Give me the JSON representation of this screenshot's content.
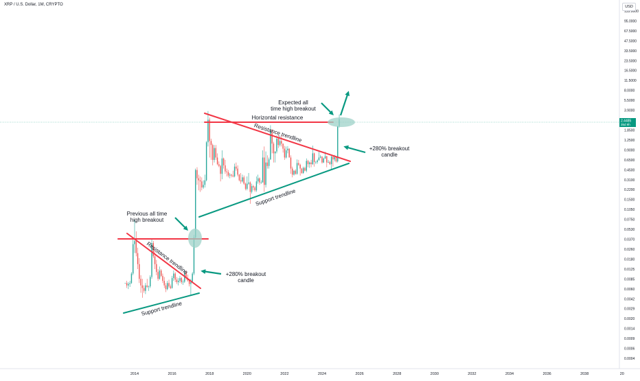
{
  "header": {
    "symbol_title": "XRP / U.S. Dollar, 1M, CRYPTO",
    "currency": "USD"
  },
  "colors": {
    "up": "#26a69a",
    "down": "#ef5350",
    "resistance": "#f23645",
    "support": "#089981",
    "annotation_arrow": "#089981",
    "price_line": "#089981",
    "highlight_circle": "#9ed2c8"
  },
  "price_label": {
    "value": "2.4485",
    "countdown": "35d 9h"
  },
  "chart_data": {
    "type": "candlestick",
    "y_scale": "log",
    "y_ticks": [
      "135.0000",
      "95.0000",
      "67.5000",
      "47.5000",
      "33.5000",
      "23.5000",
      "16.5000",
      "11.5000",
      "8.0000",
      "5.5000",
      "3.9000",
      "2.7000",
      "1.8500",
      "1.2500",
      "0.9000",
      "0.6500",
      "0.4500",
      "0.3100",
      "0.2200",
      "0.1500",
      "0.1050",
      "0.0750",
      "0.0530",
      "0.0370",
      "0.0260",
      "0.0180",
      "0.0125",
      "0.0085",
      "0.0060",
      "0.0042",
      "0.0029",
      "0.0020",
      "0.0014",
      "0.0009",
      "0.0006",
      "0.0004"
    ],
    "x_ticks": [
      "2014",
      "2016",
      "2018",
      "2020",
      "2022",
      "2024",
      "2026",
      "2028",
      "2030",
      "2032",
      "2034",
      "2036",
      "2038",
      "20"
    ],
    "x_range": [
      2013.0,
      2040.0
    ],
    "ylim": [
      0.00036,
      140
    ],
    "candles": [
      [
        2013.5,
        0.006,
        0.006,
        0.006,
        0.006
      ],
      [
        2013.583,
        0.006,
        0.0065,
        0.005,
        0.0055
      ],
      [
        2013.667,
        0.0055,
        0.0062,
        0.0048,
        0.0058
      ],
      [
        2013.75,
        0.0058,
        0.0065,
        0.0052,
        0.006
      ],
      [
        2013.833,
        0.006,
        0.009,
        0.0058,
        0.0085
      ],
      [
        2013.917,
        0.0085,
        0.03,
        0.008,
        0.025
      ],
      [
        2014.0,
        0.025,
        0.06,
        0.018,
        0.028
      ],
      [
        2014.083,
        0.028,
        0.04,
        0.016,
        0.018
      ],
      [
        2014.167,
        0.018,
        0.022,
        0.01,
        0.012
      ],
      [
        2014.25,
        0.012,
        0.015,
        0.006,
        0.007
      ],
      [
        2014.333,
        0.007,
        0.008,
        0.0042,
        0.0055
      ],
      [
        2014.417,
        0.0055,
        0.007,
        0.0035,
        0.005
      ],
      [
        2014.5,
        0.005,
        0.0055,
        0.0042,
        0.0045
      ],
      [
        2014.583,
        0.0045,
        0.006,
        0.004,
        0.0055
      ],
      [
        2014.667,
        0.0055,
        0.007,
        0.005,
        0.0052
      ],
      [
        2014.75,
        0.0052,
        0.0055,
        0.0045,
        0.0053
      ],
      [
        2014.833,
        0.0053,
        0.008,
        0.005,
        0.0075
      ],
      [
        2014.917,
        0.0075,
        0.03,
        0.007,
        0.026
      ],
      [
        2015.0,
        0.026,
        0.028,
        0.015,
        0.016
      ],
      [
        2015.083,
        0.016,
        0.02,
        0.01,
        0.012
      ],
      [
        2015.167,
        0.012,
        0.014,
        0.008,
        0.009
      ],
      [
        2015.25,
        0.009,
        0.01,
        0.0065,
        0.007
      ],
      [
        2015.333,
        0.007,
        0.011,
        0.0068,
        0.0095
      ],
      [
        2015.417,
        0.0095,
        0.01,
        0.0075,
        0.0078
      ],
      [
        2015.5,
        0.0078,
        0.0085,
        0.006,
        0.0065
      ],
      [
        2015.583,
        0.0065,
        0.0075,
        0.005,
        0.0055
      ],
      [
        2015.667,
        0.0055,
        0.006,
        0.0043,
        0.0048
      ],
      [
        2015.75,
        0.0048,
        0.0065,
        0.0046,
        0.006
      ],
      [
        2015.833,
        0.006,
        0.0068,
        0.005,
        0.0053
      ],
      [
        2015.917,
        0.0053,
        0.0057,
        0.0048,
        0.005
      ],
      [
        2016.0,
        0.005,
        0.0078,
        0.0049,
        0.0072
      ],
      [
        2016.083,
        0.0072,
        0.0095,
        0.0065,
        0.0085
      ],
      [
        2016.167,
        0.0085,
        0.009,
        0.0062,
        0.0068
      ],
      [
        2016.25,
        0.0068,
        0.0075,
        0.0058,
        0.0062
      ],
      [
        2016.333,
        0.0062,
        0.0072,
        0.0055,
        0.0065
      ],
      [
        2016.417,
        0.0065,
        0.0078,
        0.006,
        0.0072
      ],
      [
        2016.5,
        0.0072,
        0.0075,
        0.0058,
        0.0062
      ],
      [
        2016.583,
        0.0062,
        0.0068,
        0.0056,
        0.0063
      ],
      [
        2016.667,
        0.0063,
        0.0096,
        0.006,
        0.0088
      ],
      [
        2016.75,
        0.0088,
        0.0095,
        0.0068,
        0.0072
      ],
      [
        2016.833,
        0.0072,
        0.0082,
        0.0063,
        0.0066
      ],
      [
        2016.917,
        0.0066,
        0.007,
        0.0053,
        0.0058
      ],
      [
        2017.0,
        0.0058,
        0.007,
        0.0038,
        0.0062
      ],
      [
        2017.083,
        0.0062,
        0.009,
        0.006,
        0.0085
      ],
      [
        2017.167,
        0.0085,
        0.035,
        0.008,
        0.032
      ],
      [
        2017.25,
        0.032,
        0.4,
        0.03,
        0.38
      ],
      [
        2017.333,
        0.38,
        0.42,
        0.22,
        0.28
      ],
      [
        2017.417,
        0.28,
        0.32,
        0.18,
        0.26
      ],
      [
        2017.5,
        0.26,
        0.3,
        0.17,
        0.25
      ],
      [
        2017.583,
        0.25,
        0.29,
        0.18,
        0.2
      ],
      [
        2017.667,
        0.2,
        0.26,
        0.19,
        0.22
      ],
      [
        2017.75,
        0.22,
        0.32,
        0.2,
        0.26
      ],
      [
        2017.833,
        0.26,
        1.1,
        0.25,
        1.05
      ],
      [
        2017.917,
        1.05,
        3.3,
        0.9,
        2.4
      ],
      [
        2018.0,
        2.4,
        2.6,
        0.6,
        1.1
      ],
      [
        2018.083,
        1.1,
        1.2,
        0.55,
        0.95
      ],
      [
        2018.167,
        0.95,
        1.0,
        0.45,
        0.55
      ],
      [
        2018.25,
        0.55,
        0.95,
        0.5,
        0.85
      ],
      [
        2018.333,
        0.85,
        0.95,
        0.55,
        0.6
      ],
      [
        2018.417,
        0.6,
        0.7,
        0.45,
        0.47
      ],
      [
        2018.5,
        0.47,
        0.52,
        0.42,
        0.44
      ],
      [
        2018.583,
        0.44,
        0.46,
        0.25,
        0.33
      ],
      [
        2018.667,
        0.33,
        0.78,
        0.27,
        0.58
      ],
      [
        2018.75,
        0.58,
        0.6,
        0.4,
        0.45
      ],
      [
        2018.833,
        0.45,
        0.55,
        0.33,
        0.36
      ],
      [
        2018.917,
        0.36,
        0.4,
        0.3,
        0.35
      ],
      [
        2019.0,
        0.35,
        0.38,
        0.29,
        0.31
      ],
      [
        2019.083,
        0.31,
        0.34,
        0.28,
        0.32
      ],
      [
        2019.167,
        0.32,
        0.33,
        0.29,
        0.31
      ],
      [
        2019.25,
        0.31,
        0.37,
        0.29,
        0.3
      ],
      [
        2019.333,
        0.3,
        0.48,
        0.29,
        0.43
      ],
      [
        2019.417,
        0.43,
        0.5,
        0.37,
        0.4
      ],
      [
        2019.5,
        0.4,
        0.45,
        0.3,
        0.32
      ],
      [
        2019.583,
        0.32,
        0.33,
        0.25,
        0.26
      ],
      [
        2019.667,
        0.26,
        0.34,
        0.23,
        0.25
      ],
      [
        2019.75,
        0.25,
        0.32,
        0.24,
        0.29
      ],
      [
        2019.833,
        0.29,
        0.31,
        0.22,
        0.23
      ],
      [
        2019.917,
        0.23,
        0.24,
        0.18,
        0.19
      ],
      [
        2020.0,
        0.19,
        0.3,
        0.18,
        0.23
      ],
      [
        2020.083,
        0.23,
        0.34,
        0.22,
        0.24
      ],
      [
        2020.167,
        0.24,
        0.25,
        0.11,
        0.17
      ],
      [
        2020.25,
        0.17,
        0.23,
        0.16,
        0.21
      ],
      [
        2020.333,
        0.21,
        0.22,
        0.18,
        0.2
      ],
      [
        2020.417,
        0.2,
        0.21,
        0.17,
        0.18
      ],
      [
        2020.5,
        0.18,
        0.3,
        0.17,
        0.25
      ],
      [
        2020.583,
        0.25,
        0.32,
        0.23,
        0.28
      ],
      [
        2020.667,
        0.28,
        0.29,
        0.22,
        0.24
      ],
      [
        2020.75,
        0.24,
        0.26,
        0.23,
        0.24
      ],
      [
        2020.833,
        0.24,
        0.78,
        0.24,
        0.6
      ],
      [
        2020.917,
        0.6,
        0.9,
        0.17,
        0.22
      ],
      [
        2021.0,
        0.22,
        0.75,
        0.2,
        0.5
      ],
      [
        2021.083,
        0.5,
        0.65,
        0.4,
        0.44
      ],
      [
        2021.167,
        0.44,
        0.6,
        0.4,
        0.56
      ],
      [
        2021.25,
        0.56,
        1.96,
        0.55,
        1.6
      ],
      [
        2021.333,
        1.6,
        1.7,
        0.7,
        1.0
      ],
      [
        2021.417,
        1.0,
        1.07,
        0.5,
        0.7
      ],
      [
        2021.5,
        0.7,
        0.75,
        0.5,
        0.75
      ],
      [
        2021.583,
        0.75,
        1.35,
        0.7,
        1.2
      ],
      [
        2021.667,
        1.2,
        1.4,
        0.85,
        0.95
      ],
      [
        2021.75,
        0.95,
        1.35,
        0.9,
        1.1
      ],
      [
        2021.833,
        1.1,
        1.35,
        0.9,
        1.0
      ],
      [
        2021.917,
        1.0,
        1.0,
        0.72,
        0.83
      ],
      [
        2022.0,
        0.83,
        0.92,
        0.55,
        0.6
      ],
      [
        2022.083,
        0.6,
        0.9,
        0.58,
        0.78
      ],
      [
        2022.167,
        0.78,
        0.91,
        0.7,
        0.83
      ],
      [
        2022.25,
        0.83,
        0.84,
        0.6,
        0.6
      ],
      [
        2022.333,
        0.6,
        0.65,
        0.33,
        0.4
      ],
      [
        2022.417,
        0.4,
        0.43,
        0.29,
        0.32
      ],
      [
        2022.5,
        0.32,
        0.38,
        0.31,
        0.37
      ],
      [
        2022.583,
        0.37,
        0.39,
        0.32,
        0.33
      ],
      [
        2022.667,
        0.33,
        0.56,
        0.32,
        0.49
      ],
      [
        2022.75,
        0.49,
        0.55,
        0.44,
        0.46
      ],
      [
        2022.833,
        0.46,
        0.48,
        0.31,
        0.4
      ],
      [
        2022.917,
        0.4,
        0.41,
        0.33,
        0.34
      ],
      [
        2023.0,
        0.34,
        0.43,
        0.33,
        0.41
      ],
      [
        2023.083,
        0.41,
        0.43,
        0.36,
        0.37
      ],
      [
        2023.167,
        0.37,
        0.58,
        0.35,
        0.53
      ],
      [
        2023.25,
        0.53,
        0.55,
        0.42,
        0.47
      ],
      [
        2023.333,
        0.47,
        0.52,
        0.41,
        0.5
      ],
      [
        2023.417,
        0.5,
        0.55,
        0.42,
        0.47
      ],
      [
        2023.5,
        0.47,
        0.93,
        0.46,
        0.7
      ],
      [
        2023.583,
        0.7,
        0.72,
        0.43,
        0.51
      ],
      [
        2023.667,
        0.51,
        0.53,
        0.47,
        0.51
      ],
      [
        2023.75,
        0.51,
        0.56,
        0.48,
        0.54
      ],
      [
        2023.833,
        0.54,
        0.74,
        0.54,
        0.6
      ],
      [
        2023.917,
        0.6,
        0.66,
        0.58,
        0.62
      ],
      [
        2024.0,
        0.62,
        0.63,
        0.48,
        0.5
      ],
      [
        2024.083,
        0.5,
        0.6,
        0.49,
        0.58
      ],
      [
        2024.167,
        0.58,
        0.74,
        0.57,
        0.63
      ],
      [
        2024.25,
        0.63,
        0.64,
        0.42,
        0.5
      ],
      [
        2024.333,
        0.5,
        0.55,
        0.49,
        0.51
      ],
      [
        2024.417,
        0.51,
        0.53,
        0.46,
        0.47
      ],
      [
        2024.5,
        0.47,
        0.64,
        0.38,
        0.62
      ],
      [
        2024.583,
        0.62,
        0.64,
        0.43,
        0.56
      ],
      [
        2024.667,
        0.56,
        0.66,
        0.52,
        0.61
      ],
      [
        2024.75,
        0.61,
        0.62,
        0.5,
        0.52
      ],
      [
        2024.833,
        0.52,
        1.9,
        0.5,
        1.9
      ],
      [
        2024.917,
        1.9,
        2.9,
        1.8,
        2.45
      ]
    ]
  },
  "annotations": {
    "horizontal_resistance": "Horizontal resistance",
    "resistance_trendline_1": "Resistance trendline",
    "support_trendline_1": "Support trendline",
    "resistance_trendline_2": "Resistance trendline",
    "support_trendline_2": "Support trendline",
    "expected_ath_line1": "Expected all",
    "expected_ath_line2": "time high breakout",
    "previous_ath_line1": "Previous all time",
    "previous_ath_line2": "high breakout",
    "breakout_top_line1": "+280% breakout",
    "breakout_top_line2": "candle",
    "breakout_bottom_line1": "+280% breakout",
    "breakout_bottom_line2": "candle"
  }
}
